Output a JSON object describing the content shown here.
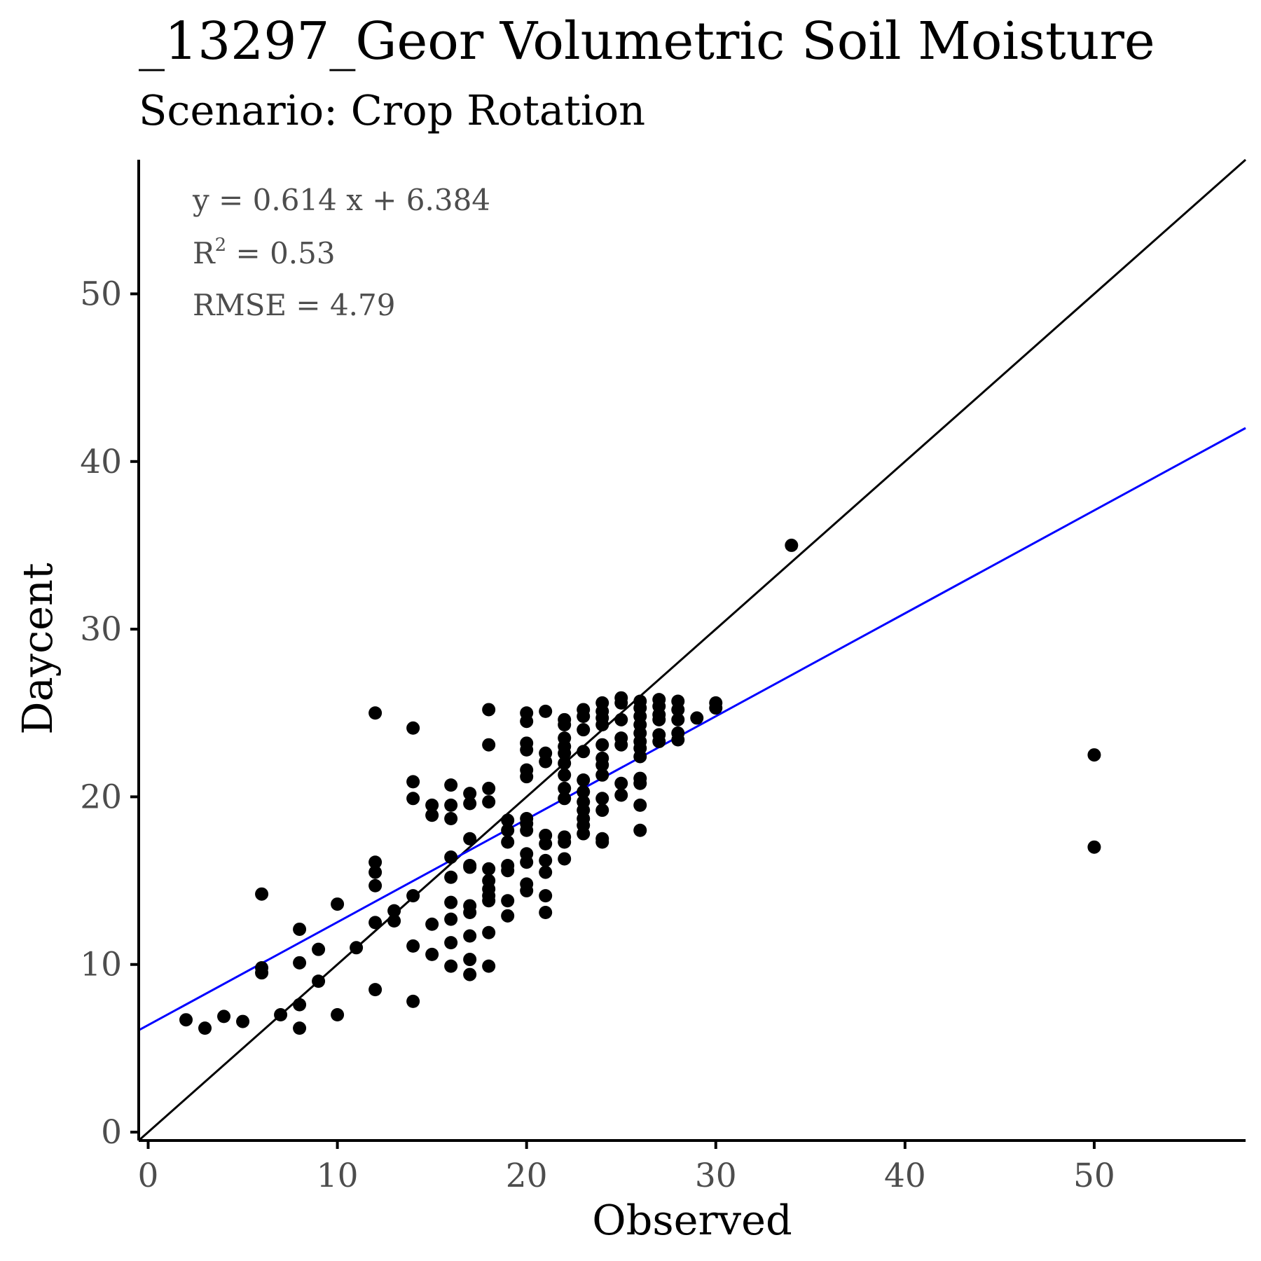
{
  "chart_data": {
    "type": "scatter",
    "title": "_13297_Geor Volumetric Soil Moisture",
    "subtitle": "Scenario: Crop Rotation",
    "xlabel": "Observed",
    "ylabel": "Daycent",
    "xlim": [
      -0.5,
      58
    ],
    "ylim": [
      -0.5,
      58
    ],
    "xticks": [
      0,
      10,
      20,
      30,
      40,
      50
    ],
    "yticks": [
      0,
      10,
      20,
      30,
      40,
      50
    ],
    "grid": false,
    "annotations": {
      "equation": "y = 0.614 x + 6.384",
      "r2_prefix": "R",
      "r2_sup": "2",
      "r2_value": " = 0.53",
      "rmse": "RMSE = 4.79"
    },
    "lines": [
      {
        "label": "1:1",
        "slope": 1,
        "intercept": 0,
        "color": "#000000"
      },
      {
        "label": "fit",
        "slope": 0.614,
        "intercept": 6.384,
        "color": "#0000ff"
      }
    ],
    "point_color": "#000000",
    "points": [
      [
        2,
        6.7
      ],
      [
        3,
        6.2
      ],
      [
        4,
        6.9
      ],
      [
        5,
        6.6
      ],
      [
        6,
        14.2
      ],
      [
        6,
        9.8
      ],
      [
        6,
        9.5
      ],
      [
        7,
        7.0
      ],
      [
        8,
        12.1
      ],
      [
        8,
        10.1
      ],
      [
        8,
        7.6
      ],
      [
        8,
        6.2
      ],
      [
        9,
        10.9
      ],
      [
        9,
        9.0
      ],
      [
        10,
        13.6
      ],
      [
        10,
        7.0
      ],
      [
        11,
        11.0
      ],
      [
        12,
        25.0
      ],
      [
        12,
        16.1
      ],
      [
        12,
        15.5
      ],
      [
        12,
        14.7
      ],
      [
        12,
        12.5
      ],
      [
        12,
        8.5
      ],
      [
        13,
        13.2
      ],
      [
        13,
        12.6
      ],
      [
        14,
        24.1
      ],
      [
        14,
        20.9
      ],
      [
        14,
        19.9
      ],
      [
        14,
        14.1
      ],
      [
        14,
        11.1
      ],
      [
        14,
        7.8
      ],
      [
        15,
        19.5
      ],
      [
        15,
        18.9
      ],
      [
        15,
        12.4
      ],
      [
        15,
        10.6
      ],
      [
        16,
        20.7
      ],
      [
        16,
        19.5
      ],
      [
        16,
        18.7
      ],
      [
        16,
        16.4
      ],
      [
        16,
        15.2
      ],
      [
        16,
        13.7
      ],
      [
        16,
        12.7
      ],
      [
        16,
        11.3
      ],
      [
        16,
        9.9
      ],
      [
        17,
        20.2
      ],
      [
        17,
        19.6
      ],
      [
        17,
        17.5
      ],
      [
        17,
        15.9
      ],
      [
        17,
        15.8
      ],
      [
        17,
        13.5
      ],
      [
        17,
        13.1
      ],
      [
        17,
        11.7
      ],
      [
        17,
        10.3
      ],
      [
        17,
        9.4
      ],
      [
        18,
        25.2
      ],
      [
        18,
        23.1
      ],
      [
        18,
        20.5
      ],
      [
        18,
        19.7
      ],
      [
        18,
        15.7
      ],
      [
        18,
        15.0
      ],
      [
        18,
        14.5
      ],
      [
        18,
        14.1
      ],
      [
        18,
        13.8
      ],
      [
        18,
        11.9
      ],
      [
        18,
        9.9
      ],
      [
        19,
        18.6
      ],
      [
        19,
        18.0
      ],
      [
        19,
        17.3
      ],
      [
        19,
        15.9
      ],
      [
        19,
        15.6
      ],
      [
        19,
        13.8
      ],
      [
        19,
        12.9
      ],
      [
        20,
        25.0
      ],
      [
        20,
        24.5
      ],
      [
        20,
        23.2
      ],
      [
        20,
        22.8
      ],
      [
        20,
        21.6
      ],
      [
        20,
        21.2
      ],
      [
        20,
        18.7
      ],
      [
        20,
        18.4
      ],
      [
        20,
        18.0
      ],
      [
        20,
        16.6
      ],
      [
        20,
        16.1
      ],
      [
        20,
        14.8
      ],
      [
        20,
        14.4
      ],
      [
        21,
        25.1
      ],
      [
        21,
        22.6
      ],
      [
        21,
        22.1
      ],
      [
        21,
        17.7
      ],
      [
        21,
        17.2
      ],
      [
        21,
        16.2
      ],
      [
        21,
        15.5
      ],
      [
        21,
        14.1
      ],
      [
        21,
        13.1
      ],
      [
        22,
        24.6
      ],
      [
        22,
        24.3
      ],
      [
        22,
        23.5
      ],
      [
        22,
        23.0
      ],
      [
        22,
        22.6
      ],
      [
        22,
        22.0
      ],
      [
        22,
        21.3
      ],
      [
        22,
        20.5
      ],
      [
        22,
        19.9
      ],
      [
        22,
        17.6
      ],
      [
        22,
        17.3
      ],
      [
        22,
        16.3
      ],
      [
        23,
        25.2
      ],
      [
        23,
        24.8
      ],
      [
        23,
        24.0
      ],
      [
        23,
        22.7
      ],
      [
        23,
        21.0
      ],
      [
        23,
        20.3
      ],
      [
        23,
        19.7
      ],
      [
        23,
        19.2
      ],
      [
        23,
        18.7
      ],
      [
        23,
        18.3
      ],
      [
        23,
        17.8
      ],
      [
        24,
        25.6
      ],
      [
        24,
        25.1
      ],
      [
        24,
        24.7
      ],
      [
        24,
        24.3
      ],
      [
        24,
        23.1
      ],
      [
        24,
        22.3
      ],
      [
        24,
        21.9
      ],
      [
        24,
        21.3
      ],
      [
        24,
        19.9
      ],
      [
        24,
        19.2
      ],
      [
        24,
        17.5
      ],
      [
        24,
        17.3
      ],
      [
        25,
        25.9
      ],
      [
        25,
        25.6
      ],
      [
        25,
        24.6
      ],
      [
        25,
        23.5
      ],
      [
        25,
        23.1
      ],
      [
        25,
        20.8
      ],
      [
        25,
        20.1
      ],
      [
        26,
        25.7
      ],
      [
        26,
        25.3
      ],
      [
        26,
        24.8
      ],
      [
        26,
        24.3
      ],
      [
        26,
        23.8
      ],
      [
        26,
        23.3
      ],
      [
        26,
        22.9
      ],
      [
        26,
        22.4
      ],
      [
        26,
        21.1
      ],
      [
        26,
        20.8
      ],
      [
        26,
        19.5
      ],
      [
        26,
        18.0
      ],
      [
        27,
        25.8
      ],
      [
        27,
        25.4
      ],
      [
        27,
        24.9
      ],
      [
        27,
        24.6
      ],
      [
        27,
        23.7
      ],
      [
        27,
        23.3
      ],
      [
        28,
        25.7
      ],
      [
        28,
        25.2
      ],
      [
        28,
        24.6
      ],
      [
        28,
        23.8
      ],
      [
        28,
        23.4
      ],
      [
        29,
        24.7
      ],
      [
        30,
        25.6
      ],
      [
        30,
        25.3
      ],
      [
        34,
        35.0
      ],
      [
        50,
        22.5
      ],
      [
        50,
        17.0
      ]
    ]
  }
}
